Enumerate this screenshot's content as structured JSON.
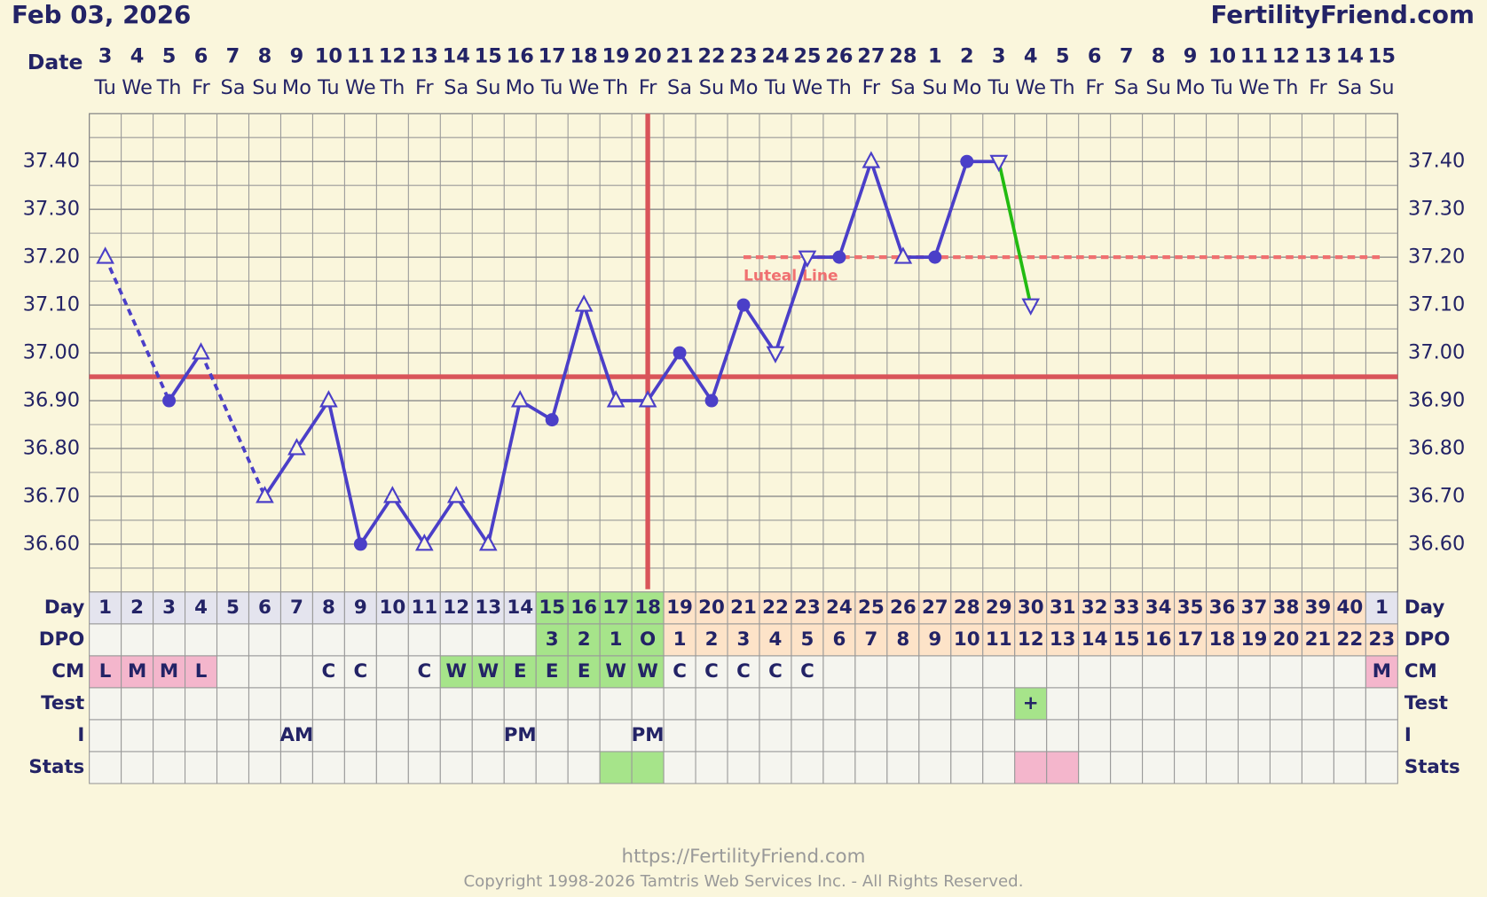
{
  "header": {
    "date": "Feb 03, 2026",
    "site": "FertilityFriend.com"
  },
  "chart_data": {
    "type": "line",
    "x_label": "Date",
    "dates": [
      3,
      4,
      5,
      6,
      7,
      8,
      9,
      10,
      11,
      12,
      13,
      14,
      15,
      16,
      17,
      18,
      19,
      20,
      21,
      22,
      23,
      24,
      25,
      26,
      27,
      28,
      1,
      2,
      3,
      4,
      5,
      6,
      7,
      8,
      9,
      10,
      11,
      12,
      13,
      14,
      15
    ],
    "weekdays": [
      "Tu",
      "We",
      "Th",
      "Fr",
      "Sa",
      "Su",
      "Mo",
      "Tu",
      "We",
      "Th",
      "Fr",
      "Sa",
      "Su",
      "Mo",
      "Tu",
      "We",
      "Th",
      "Fr",
      "Sa",
      "Su",
      "Mo",
      "Tu",
      "We",
      "Th",
      "Fr",
      "Sa",
      "Su",
      "Mo",
      "Tu",
      "We",
      "Th",
      "Fr",
      "Sa",
      "Su",
      "Mo",
      "Tu",
      "We",
      "Th",
      "Fr",
      "Sa",
      "Su"
    ],
    "values": [
      37.2,
      null,
      36.9,
      37.0,
      null,
      36.7,
      36.8,
      36.9,
      36.6,
      36.7,
      36.6,
      36.7,
      36.6,
      36.9,
      36.86,
      37.1,
      36.9,
      36.9,
      37.0,
      36.9,
      37.1,
      37.0,
      37.2,
      37.2,
      37.4,
      37.2,
      37.2,
      37.4,
      37.4,
      37.1,
      null,
      null,
      null,
      null,
      null,
      null,
      null,
      null,
      null,
      null,
      null
    ],
    "markers": [
      "up",
      null,
      "circle",
      "up",
      null,
      "up",
      "up",
      "up",
      "circle",
      "up",
      "up",
      "up",
      "up",
      "up",
      "circle",
      "up",
      "up",
      "up",
      "circle",
      "circle",
      "circle",
      "down",
      "down",
      "circle",
      "up",
      "up",
      "circle",
      "circle",
      "down",
      "down",
      null,
      null,
      null,
      null,
      null,
      null,
      null,
      null,
      null,
      null,
      null
    ],
    "color": "#4b3fc8",
    "last_segment_color": "#22bb11",
    "gap_style": "dashed",
    "ylim": [
      36.5,
      37.5
    ],
    "yticks": [
      {
        "value": 36.6,
        "label": "36.60"
      },
      {
        "value": 36.7,
        "label": "36.70"
      },
      {
        "value": 36.8,
        "label": "36.80"
      },
      {
        "value": 36.9,
        "label": "36.90"
      },
      {
        "value": 37.0,
        "label": "37.00"
      },
      {
        "value": 37.1,
        "label": "37.10"
      },
      {
        "value": 37.2,
        "label": "37.20"
      },
      {
        "value": 37.3,
        "label": "37.30"
      },
      {
        "value": 37.4,
        "label": "37.40"
      }
    ],
    "coverline": 36.95,
    "coverline_color": "#d9545a",
    "ovulation_index": 17,
    "luteal_line": {
      "value": 37.2,
      "label": "Luteal Line",
      "start_index": 20,
      "color": "#f07070"
    },
    "rows": [
      {
        "label": "Day",
        "cells": [
          1,
          2,
          3,
          4,
          5,
          6,
          7,
          8,
          9,
          10,
          11,
          12,
          13,
          14,
          15,
          16,
          17,
          18,
          19,
          20,
          21,
          22,
          23,
          24,
          25,
          26,
          27,
          28,
          29,
          30,
          31,
          32,
          33,
          34,
          35,
          36,
          37,
          38,
          39,
          40,
          1
        ],
        "colors": [
          "#e4e4ee",
          "#e4e4ee",
          "#e4e4ee",
          "#e4e4ee",
          "#e4e4ee",
          "#e4e4ee",
          "#e4e4ee",
          "#e4e4ee",
          "#e4e4ee",
          "#e4e4ee",
          "#e4e4ee",
          "#e4e4ee",
          "#e4e4ee",
          "#e4e4ee",
          "#a6e48a",
          "#a6e48a",
          "#a6e48a",
          "#a6e48a",
          "#fde3c8",
          "#fde3c8",
          "#fde3c8",
          "#fde3c8",
          "#fde3c8",
          "#fde3c8",
          "#fde3c8",
          "#fde3c8",
          "#fde3c8",
          "#fde3c8",
          "#fde3c8",
          "#fde3c8",
          "#fde3c8",
          "#fde3c8",
          "#fde3c8",
          "#fde3c8",
          "#fde3c8",
          "#fde3c8",
          "#fde3c8",
          "#fde3c8",
          "#fde3c8",
          "#fde3c8",
          "#e4e4ee"
        ]
      },
      {
        "label": "DPO",
        "cells": [
          null,
          null,
          null,
          null,
          null,
          null,
          null,
          null,
          null,
          null,
          null,
          null,
          null,
          null,
          3,
          2,
          1,
          "O",
          1,
          2,
          3,
          4,
          5,
          6,
          7,
          8,
          9,
          10,
          11,
          12,
          13,
          14,
          15,
          16,
          17,
          18,
          19,
          20,
          21,
          22,
          23
        ],
        "colors": [
          null,
          null,
          null,
          null,
          null,
          null,
          null,
          null,
          null,
          null,
          null,
          null,
          null,
          null,
          "#a6e48a",
          "#a6e48a",
          "#a6e48a",
          "#a6e48a",
          "#fde3c8",
          "#fde3c8",
          "#fde3c8",
          "#fde3c8",
          "#fde3c8",
          "#fde3c8",
          "#fde3c8",
          "#fde3c8",
          "#fde3c8",
          "#fde3c8",
          "#fde3c8",
          "#fde3c8",
          "#fde3c8",
          "#fde3c8",
          "#fde3c8",
          "#fde3c8",
          "#fde3c8",
          "#fde3c8",
          "#fde3c8",
          "#fde3c8",
          "#fde3c8",
          "#fde3c8",
          "#fde3c8"
        ]
      },
      {
        "label": "CM",
        "cells": [
          "L",
          "M",
          "M",
          "L",
          null,
          null,
          null,
          "C",
          "C",
          null,
          "C",
          "W",
          "W",
          "E",
          "E",
          "E",
          "W",
          "W",
          "C",
          "C",
          "C",
          "C",
          "C",
          null,
          null,
          null,
          null,
          null,
          null,
          null,
          null,
          null,
          null,
          null,
          null,
          null,
          null,
          null,
          null,
          null,
          "M"
        ],
        "colors": [
          "#f4b6cc",
          "#f4b6cc",
          "#f4b6cc",
          "#f4b6cc",
          null,
          null,
          null,
          null,
          null,
          null,
          null,
          "#a6e48a",
          "#a6e48a",
          "#a6e48a",
          "#a6e48a",
          "#a6e48a",
          "#a6e48a",
          "#a6e48a",
          null,
          null,
          null,
          null,
          null,
          null,
          null,
          null,
          null,
          null,
          null,
          null,
          null,
          null,
          null,
          null,
          null,
          null,
          null,
          null,
          null,
          null,
          "#f4b6cc"
        ]
      },
      {
        "label": "Test",
        "cells": [
          null,
          null,
          null,
          null,
          null,
          null,
          null,
          null,
          null,
          null,
          null,
          null,
          null,
          null,
          null,
          null,
          null,
          null,
          null,
          null,
          null,
          null,
          null,
          null,
          null,
          null,
          null,
          null,
          null,
          "+",
          null,
          null,
          null,
          null,
          null,
          null,
          null,
          null,
          null,
          null,
          null
        ],
        "colors": [
          null,
          null,
          null,
          null,
          null,
          null,
          null,
          null,
          null,
          null,
          null,
          null,
          null,
          null,
          null,
          null,
          null,
          null,
          null,
          null,
          null,
          null,
          null,
          null,
          null,
          null,
          null,
          null,
          null,
          "#a6e48a",
          null,
          null,
          null,
          null,
          null,
          null,
          null,
          null,
          null,
          null,
          null
        ]
      },
      {
        "label": "I",
        "cells": [
          null,
          null,
          null,
          null,
          null,
          null,
          "AM",
          null,
          null,
          null,
          null,
          null,
          null,
          "PM",
          null,
          null,
          null,
          "PM",
          null,
          null,
          null,
          null,
          null,
          null,
          null,
          null,
          null,
          null,
          null,
          null,
          null,
          null,
          null,
          null,
          null,
          null,
          null,
          null,
          null,
          null,
          null
        ],
        "colors": [
          null,
          null,
          null,
          null,
          null,
          null,
          null,
          null,
          null,
          null,
          null,
          null,
          null,
          null,
          null,
          null,
          null,
          null,
          null,
          null,
          null,
          null,
          null,
          null,
          null,
          null,
          null,
          null,
          null,
          null,
          null,
          null,
          null,
          null,
          null,
          null,
          null,
          null,
          null,
          null,
          null
        ]
      },
      {
        "label": "Stats",
        "cells": [
          null,
          null,
          null,
          null,
          null,
          null,
          null,
          null,
          null,
          null,
          null,
          null,
          null,
          null,
          null,
          null,
          null,
          null,
          null,
          null,
          null,
          null,
          null,
          null,
          null,
          null,
          null,
          null,
          null,
          null,
          null,
          null,
          null,
          null,
          null,
          null,
          null,
          null,
          null,
          null,
          null
        ],
        "colors": [
          null,
          null,
          null,
          null,
          null,
          null,
          null,
          null,
          null,
          null,
          null,
          null,
          null,
          null,
          null,
          null,
          "#a6e48a",
          "#a6e48a",
          null,
          null,
          null,
          null,
          null,
          null,
          null,
          null,
          null,
          null,
          null,
          "#f4b6cc",
          "#f4b6cc",
          null,
          null,
          null,
          null,
          null,
          null,
          null,
          null,
          null,
          null
        ]
      }
    ]
  },
  "footer": {
    "url": "https://FertilityFriend.com",
    "copyright": "Copyright 1998-2026 Tamtris Web Services Inc. - All Rights Reserved."
  }
}
